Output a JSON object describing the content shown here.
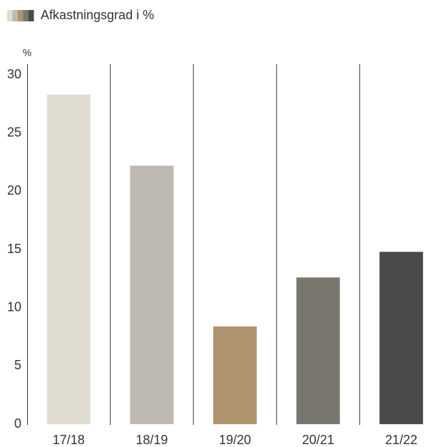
{
  "chart_data": {
    "type": "bar",
    "y_label": "%",
    "categories": [
      "17/18",
      "18/19",
      "19/20",
      "20/21",
      "21/22"
    ],
    "series": [
      {
        "name": "Afkastningsgrad i %",
        "colors": [
          "#e0dccf",
          "#bdb8b1",
          "#b09470",
          "#7a776e",
          "#4a4a4c"
        ],
        "values": [
          28.3,
          22.2,
          8.4,
          12.6,
          14.8
        ]
      }
    ],
    "ylim": [
      0,
      30
    ],
    "yticks": [
      0,
      5,
      10,
      15,
      20,
      25,
      30
    ],
    "legend": "top-left"
  }
}
